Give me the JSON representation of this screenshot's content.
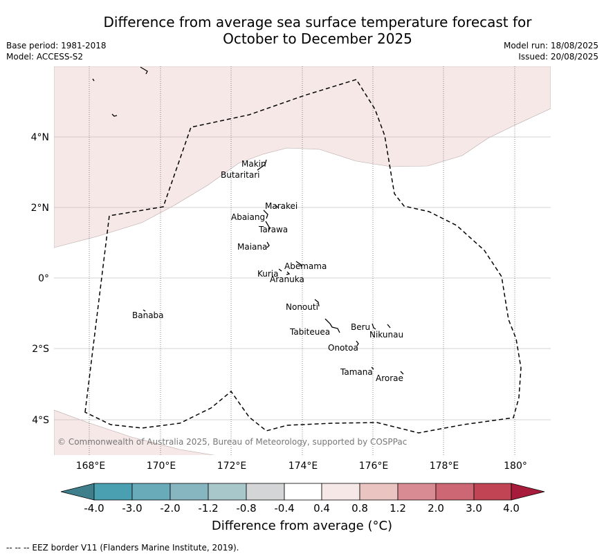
{
  "title_line1": "Difference from average sea surface temperature forecast for",
  "title_line2": "October to December 2025",
  "base_period": "Base period: 1981-2018",
  "model": "Model: ACCESS-S2",
  "model_run": "Model run: 18/08/2025",
  "issued": "Issued: 20/08/2025",
  "copyright": "© Commonwealth of Australia 2025, Bureau of Meteorology, supported by COSPPac",
  "lon_ticks": [
    "168°E",
    "170°E",
    "172°E",
    "174°E",
    "176°E",
    "178°E",
    "180°"
  ],
  "lat_ticks": [
    "4°N",
    "2°N",
    "0°",
    "2°S",
    "4°S"
  ],
  "places": [
    {
      "name": "Makin"
    },
    {
      "name": "Butaritari"
    },
    {
      "name": "Marakei"
    },
    {
      "name": "Abaiang"
    },
    {
      "name": "Tarawa"
    },
    {
      "name": "Maiana"
    },
    {
      "name": "Abemama"
    },
    {
      "name": "Kuria"
    },
    {
      "name": "Aranuka"
    },
    {
      "name": "Nonouti"
    },
    {
      "name": "Banaba"
    },
    {
      "name": "Beru"
    },
    {
      "name": "Tabiteuea"
    },
    {
      "name": "Nikunau"
    },
    {
      "name": "Onotoa"
    },
    {
      "name": "Tamana"
    },
    {
      "name": "Arorae"
    }
  ],
  "colorbar": {
    "ticks": [
      "-4.0",
      "-3.0",
      "-2.0",
      "-1.2",
      "-0.8",
      "-0.4",
      "0.4",
      "0.8",
      "1.2",
      "2.0",
      "3.0",
      "4.0"
    ],
    "colors": [
      "#3f7f8c",
      "#4aa0b1",
      "#69abb9",
      "#87b6c0",
      "#a8c7cb",
      "#d3d5d6",
      "#ffffff",
      "#f5e8e7",
      "#e9c4c1",
      "#d88b92",
      "#cc6773",
      "#c04454",
      "#a61c3a"
    ],
    "label": "Difference from average (°C)"
  },
  "footnote": "--  --  -- EEZ border V11 (Flanders Marine Institute, 2019).",
  "legend_colors": {
    "anomaly_0_4_to_0_8": "#f5e8e7",
    "eez_line": "#000000"
  }
}
